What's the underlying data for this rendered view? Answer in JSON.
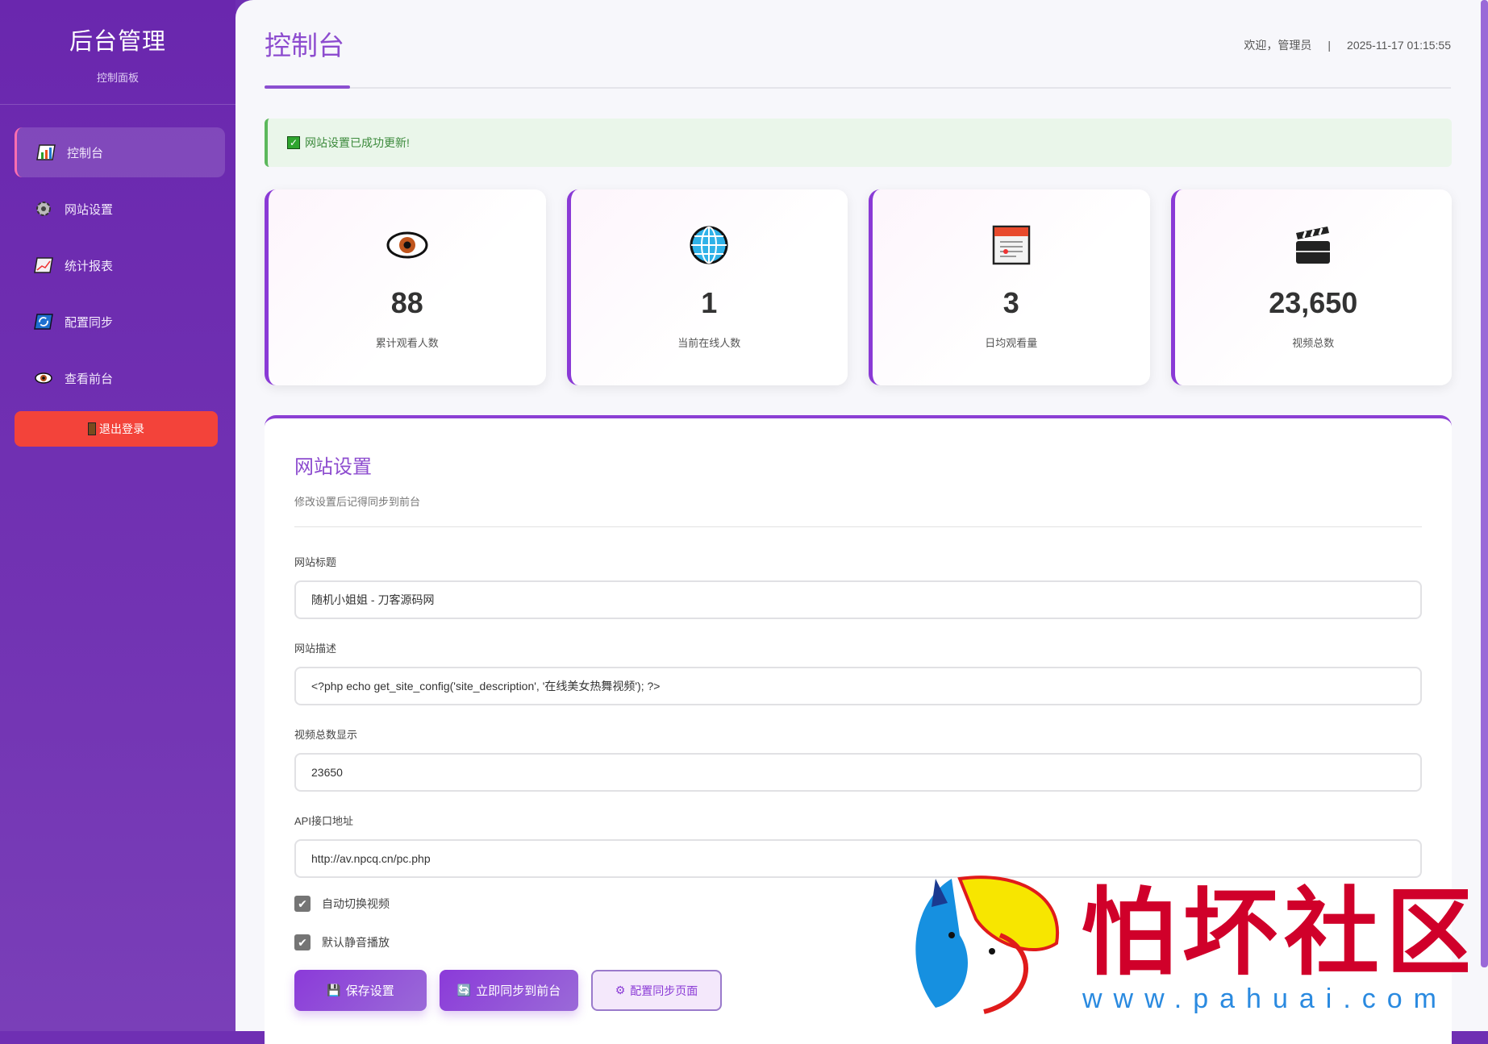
{
  "sidebar": {
    "title": "后台管理",
    "subtitle": "控制面板",
    "items": [
      {
        "label": "控制台",
        "icon": "bar-chart-icon",
        "active": true
      },
      {
        "label": "网站设置",
        "icon": "gear-icon"
      },
      {
        "label": "统计报表",
        "icon": "line-chart-icon"
      },
      {
        "label": "配置同步",
        "icon": "sync-icon"
      },
      {
        "label": "查看前台",
        "icon": "eye-icon"
      }
    ],
    "logout": "退出登录"
  },
  "header": {
    "title": "控制台",
    "welcome": "欢迎，管理员",
    "separator": "|",
    "datetime": "2025-11-17 01:15:55"
  },
  "alert": {
    "message": "网站设置已成功更新!"
  },
  "stats": [
    {
      "value": "88",
      "label": "累计观看人数",
      "icon": "eye-icon"
    },
    {
      "value": "1",
      "label": "当前在线人数",
      "icon": "globe-icon"
    },
    {
      "value": "3",
      "label": "日均观看量",
      "icon": "calendar-icon"
    },
    {
      "value": "23,650",
      "label": "视频总数",
      "icon": "clapperboard-icon"
    }
  ],
  "settings": {
    "title": "网站设置",
    "subtitle": "修改设置后记得同步到前台",
    "fields": [
      {
        "label": "网站标题",
        "value": "随机小姐姐 - 刀客源码网"
      },
      {
        "label": "网站描述",
        "value": "<?php echo get_site_config('site_description', '在线美女热舞视频'); ?>"
      },
      {
        "label": "视频总数显示",
        "value": "23650"
      },
      {
        "label": "API接口地址",
        "value": "http://av.npcq.cn/pc.php"
      }
    ],
    "checkboxes": [
      {
        "label": "自动切换视频",
        "checked": true
      },
      {
        "label": "默认静音播放",
        "checked": true
      }
    ],
    "buttons": {
      "save": "保存设置",
      "sync": "立即同步到前台",
      "config": "配置同步页面"
    }
  },
  "watermark": {
    "name": "怕坏社区",
    "url": "www.pahuai.com"
  },
  "colors": {
    "accent": "#8b3fd4",
    "sidebar": "#6a27ae",
    "logout": "#f3433a",
    "success": "#5cb85c"
  }
}
